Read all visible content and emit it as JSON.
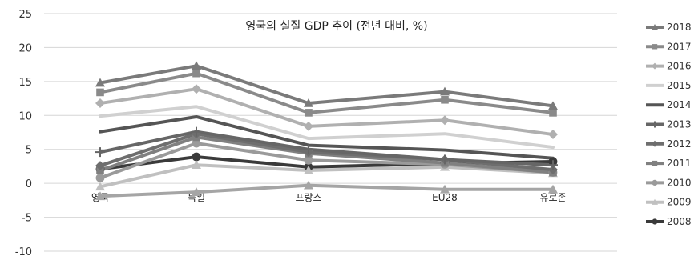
{
  "chart_data": {
    "type": "line",
    "title": "영국의 실질 GDP 추이 (전년 대비, %)",
    "xlabel": "",
    "ylabel": "",
    "categories": [
      "영국",
      "독일",
      "프랑스",
      "EU28",
      "유로존"
    ],
    "ylim": [
      -10,
      25
    ],
    "yticks": [
      -10,
      -5,
      0,
      5,
      10,
      15,
      20,
      25
    ],
    "grid": true,
    "legend_position": "right",
    "series": [
      {
        "name": "2018",
        "values": [
          14.8,
          17.3,
          11.8,
          13.5,
          11.4
        ],
        "color": "#7a7a7a",
        "marker": "triangle"
      },
      {
        "name": "2017",
        "values": [
          13.4,
          16.2,
          10.4,
          12.3,
          10.4
        ],
        "color": "#8a8a8a",
        "marker": "square"
      },
      {
        "name": "2016",
        "values": [
          11.8,
          13.9,
          8.4,
          9.3,
          7.2
        ],
        "color": "#b0b0b0",
        "marker": "diamond"
      },
      {
        "name": "2015",
        "values": [
          9.9,
          11.3,
          6.6,
          7.3,
          5.3
        ],
        "color": "#d0d0d0",
        "marker": "none"
      },
      {
        "name": "2014",
        "values": [
          7.6,
          9.8,
          5.6,
          4.9,
          3.7
        ],
        "color": "#555555",
        "marker": "none"
      },
      {
        "name": "2013",
        "values": [
          4.6,
          7.6,
          5.0,
          3.5,
          2.7
        ],
        "color": "#666666",
        "marker": "plus"
      },
      {
        "name": "2012",
        "values": [
          2.6,
          7.3,
          4.6,
          3.5,
          2.0
        ],
        "color": "#6e6e6e",
        "marker": "diamond"
      },
      {
        "name": "2011",
        "values": [
          1.9,
          6.8,
          4.4,
          3.0,
          1.6
        ],
        "color": "#808080",
        "marker": "square"
      },
      {
        "name": "2010",
        "values": [
          0.8,
          5.9,
          3.4,
          2.8,
          1.6
        ],
        "color": "#9a9a9a",
        "marker": "circle"
      },
      {
        "name": "2009",
        "values": [
          -0.5,
          2.7,
          1.9,
          2.4,
          1.5
        ],
        "color": "#c0c0c0",
        "marker": "triangle"
      },
      {
        "name": "2008",
        "values": [
          2.1,
          3.9,
          2.4,
          2.9,
          3.2
        ],
        "color": "#3a3a3a",
        "marker": "circle"
      },
      {
        "name": "",
        "values": [
          -1.9,
          -1.3,
          -0.3,
          -0.9,
          -0.9
        ],
        "color": "#a5a5a5",
        "marker": "triangle"
      }
    ]
  }
}
